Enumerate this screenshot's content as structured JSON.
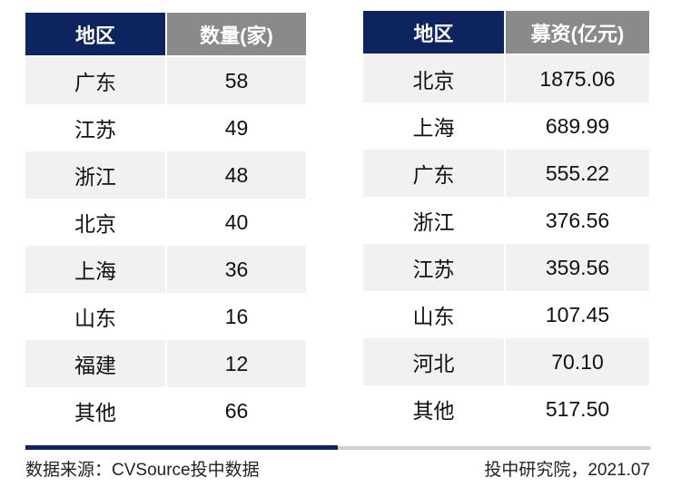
{
  "left_table": {
    "headers": [
      "地区",
      "数量(家)"
    ],
    "rows": [
      [
        "广东",
        "58"
      ],
      [
        "江苏",
        "49"
      ],
      [
        "浙江",
        "48"
      ],
      [
        "北京",
        "40"
      ],
      [
        "上海",
        "36"
      ],
      [
        "山东",
        "16"
      ],
      [
        "福建",
        "12"
      ],
      [
        "其他",
        "66"
      ]
    ]
  },
  "right_table": {
    "headers": [
      "地区",
      "募资(亿元)"
    ],
    "rows": [
      [
        "北京",
        "1875.06"
      ],
      [
        "上海",
        "689.99"
      ],
      [
        "广东",
        "555.22"
      ],
      [
        "浙江",
        "376.56"
      ],
      [
        "江苏",
        "359.56"
      ],
      [
        "山东",
        "107.45"
      ],
      [
        "河北",
        "70.10"
      ],
      [
        "其他",
        "517.50"
      ]
    ]
  },
  "footer": {
    "source": "数据来源：CVSource投中数据",
    "org": "投中研究院，2021.07"
  },
  "colors": {
    "header_primary": "#0d2461",
    "header_secondary": "#8a8a8a",
    "row_alt": "#f1f1f1"
  }
}
